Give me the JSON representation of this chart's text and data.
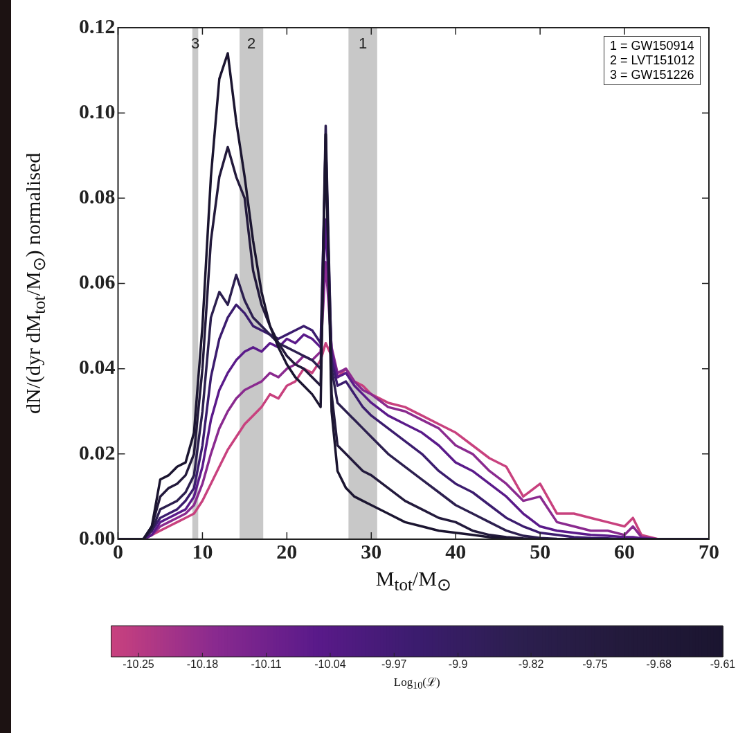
{
  "chart_data": {
    "type": "line",
    "xlabel": "M$_{tot}$/M$_{⊙}$",
    "ylabel": "dN/(dyr dM$_{tot}$/M$_{⊙}$) normalised",
    "clabel": "Log$_{10}$(ℒ)",
    "x": [
      0,
      3,
      4,
      5,
      6,
      7,
      8,
      9,
      10,
      11,
      12,
      13,
      14,
      15,
      16,
      17,
      18,
      19,
      20,
      21,
      22,
      23,
      24,
      24.6,
      25.3,
      26,
      27,
      28,
      29,
      30,
      32,
      34,
      36,
      38,
      40,
      42,
      44,
      46,
      48,
      50,
      52,
      54,
      56,
      58,
      60,
      61,
      62,
      64,
      70
    ],
    "series": [
      {
        "color": "#1b1530",
        "values": [
          0,
          0,
          0.003,
          0.014,
          0.015,
          0.017,
          0.018,
          0.025,
          0.05,
          0.085,
          0.108,
          0.114,
          0.098,
          0.085,
          0.07,
          0.058,
          0.05,
          0.045,
          0.041,
          0.038,
          0.036,
          0.034,
          0.031,
          0.095,
          0.03,
          0.016,
          0.012,
          0.01,
          0.009,
          0.008,
          0.006,
          0.004,
          0.003,
          0.002,
          0.0015,
          0.001,
          0.0005,
          0.0002,
          0,
          0,
          0,
          0,
          0,
          0,
          0,
          0,
          0,
          0,
          0
        ]
      },
      {
        "color": "#231a3c",
        "values": [
          0,
          0,
          0.003,
          0.01,
          0.012,
          0.013,
          0.015,
          0.02,
          0.04,
          0.07,
          0.085,
          0.092,
          0.085,
          0.08,
          0.063,
          0.055,
          0.05,
          0.046,
          0.043,
          0.041,
          0.04,
          0.038,
          0.036,
          0.095,
          0.034,
          0.022,
          0.02,
          0.018,
          0.016,
          0.015,
          0.012,
          0.009,
          0.007,
          0.005,
          0.004,
          0.002,
          0.001,
          0.0005,
          0.0002,
          0,
          0,
          0,
          0,
          0,
          0,
          0,
          0,
          0,
          0
        ]
      },
      {
        "color": "#2c1f4f",
        "values": [
          0,
          0,
          0.002,
          0.007,
          0.008,
          0.009,
          0.011,
          0.015,
          0.03,
          0.052,
          0.058,
          0.055,
          0.062,
          0.056,
          0.052,
          0.05,
          0.048,
          0.046,
          0.045,
          0.044,
          0.043,
          0.042,
          0.04,
          0.097,
          0.04,
          0.032,
          0.03,
          0.028,
          0.026,
          0.024,
          0.02,
          0.017,
          0.014,
          0.011,
          0.008,
          0.006,
          0.004,
          0.002,
          0.0008,
          0.0003,
          0.0001,
          0,
          0,
          0,
          0,
          0,
          0,
          0,
          0
        ]
      },
      {
        "color": "#3b1c6e",
        "values": [
          0,
          0,
          0.002,
          0.005,
          0.006,
          0.007,
          0.009,
          0.012,
          0.022,
          0.038,
          0.047,
          0.052,
          0.055,
          0.053,
          0.05,
          0.049,
          0.048,
          0.047,
          0.048,
          0.049,
          0.05,
          0.049,
          0.046,
          0.09,
          0.042,
          0.036,
          0.037,
          0.034,
          0.031,
          0.029,
          0.026,
          0.023,
          0.02,
          0.016,
          0.013,
          0.011,
          0.008,
          0.005,
          0.003,
          0.0015,
          0.001,
          0.0005,
          0.0003,
          0.0002,
          0,
          0,
          0,
          0,
          0
        ]
      },
      {
        "color": "#5a1a8a",
        "values": [
          0,
          0,
          0.001,
          0.004,
          0.005,
          0.006,
          0.007,
          0.01,
          0.017,
          0.028,
          0.035,
          0.039,
          0.042,
          0.044,
          0.045,
          0.044,
          0.046,
          0.045,
          0.047,
          0.046,
          0.048,
          0.047,
          0.045,
          0.075,
          0.044,
          0.038,
          0.039,
          0.036,
          0.034,
          0.032,
          0.029,
          0.027,
          0.025,
          0.022,
          0.018,
          0.016,
          0.013,
          0.01,
          0.006,
          0.003,
          0.002,
          0.0015,
          0.001,
          0.0008,
          0.0005,
          0.0005,
          0.0002,
          0,
          0
        ]
      },
      {
        "color": "#8a2a8f",
        "values": [
          0,
          0,
          0.001,
          0.003,
          0.004,
          0.005,
          0.006,
          0.008,
          0.013,
          0.02,
          0.026,
          0.03,
          0.033,
          0.035,
          0.036,
          0.037,
          0.039,
          0.038,
          0.04,
          0.041,
          0.043,
          0.042,
          0.044,
          0.065,
          0.045,
          0.039,
          0.04,
          0.037,
          0.035,
          0.034,
          0.031,
          0.03,
          0.028,
          0.026,
          0.022,
          0.02,
          0.016,
          0.013,
          0.009,
          0.01,
          0.004,
          0.003,
          0.002,
          0.002,
          0.001,
          0.003,
          0.0005,
          0,
          0
        ]
      },
      {
        "color": "#c8417e",
        "values": [
          0,
          0,
          0.001,
          0.002,
          0.003,
          0.004,
          0.005,
          0.006,
          0.009,
          0.013,
          0.017,
          0.021,
          0.024,
          0.027,
          0.029,
          0.031,
          0.034,
          0.033,
          0.036,
          0.037,
          0.04,
          0.039,
          0.042,
          0.046,
          0.043,
          0.038,
          0.04,
          0.037,
          0.036,
          0.034,
          0.032,
          0.031,
          0.029,
          0.027,
          0.025,
          0.022,
          0.019,
          0.017,
          0.01,
          0.013,
          0.006,
          0.006,
          0.005,
          0.004,
          0.003,
          0.005,
          0.001,
          0,
          0
        ]
      }
    ],
    "xlim": [
      0,
      70
    ],
    "xticks": [
      0,
      10,
      20,
      30,
      40,
      50,
      60,
      70
    ],
    "ylim": [
      0,
      0.12
    ],
    "yticks": [
      {
        "value": 0,
        "label": "0.00"
      },
      {
        "value": 0.02,
        "label": "0.02"
      },
      {
        "value": 0.04,
        "label": "0.04"
      },
      {
        "value": 0.06,
        "label": "0.06"
      },
      {
        "value": 0.08,
        "label": "0.08"
      },
      {
        "value": 0.1,
        "label": "0.10"
      },
      {
        "value": 0.12,
        "label": "0.12"
      }
    ],
    "clim": [
      -10.28,
      -9.61
    ],
    "cticks": [
      -10.25,
      -10.18,
      -10.11,
      -10.04,
      -9.97,
      -9.9,
      -9.82,
      -9.75,
      -9.68,
      -9.61
    ],
    "bands": [
      {
        "axis": "x",
        "from": 8.8,
        "to": 9.5,
        "label": "3",
        "color": "#c8c8c8"
      },
      {
        "axis": "x",
        "from": 14.4,
        "to": 17.2,
        "label": "2",
        "color": "#c8c8c8"
      },
      {
        "axis": "x",
        "from": 27.3,
        "to": 30.7,
        "label": "1",
        "color": "#c8c8c8"
      }
    ],
    "annotations": [
      "1 = GW150914",
      "2 = LVT151012",
      "3 = GW151226"
    ],
    "grid": false,
    "legend": false,
    "marker": "none",
    "line_style": "solid"
  }
}
